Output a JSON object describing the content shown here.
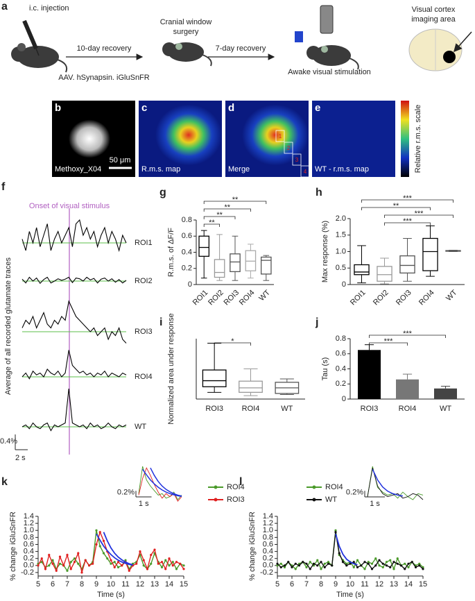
{
  "figure": {
    "a": {
      "label": "a",
      "injection": "i.c. injection",
      "recovery1": "10-day recovery",
      "surgery": [
        "Cranial window",
        "surgery"
      ],
      "recovery2": "7-day recovery",
      "stimulation": "Awake visual stimulation",
      "imaging": [
        "Visual cortex",
        "imaging area"
      ],
      "virus": "AAV. hSynapsin. iGluSnFR"
    },
    "images": [
      {
        "label": "b",
        "caption": "Methoxy_X04"
      },
      {
        "label": "c",
        "caption": "R.m.s. map"
      },
      {
        "label": "d",
        "caption": "Merge"
      },
      {
        "label": "e",
        "caption": "WT - r.m.s. map"
      }
    ],
    "scale_bar": "50 μm",
    "colorbar": "Relative r.m.s. scale",
    "rois": [
      "1",
      "2",
      "3",
      "4"
    ]
  },
  "chart_data": [
    {
      "type": "trace",
      "panel": "f",
      "annotation": "Onset of visual stimulus",
      "ylabel": "Average of all recorded glutamate traces",
      "scale_bar": {
        "value": 0.4,
        "label": "0.4%"
      },
      "time_bar": "2 s",
      "baseline_color": "#5bbf4a",
      "onset_color": "#b05ec0",
      "series": [
        {
          "name": "ROI1",
          "color": "#000000",
          "values": [
            0.1,
            -0.2,
            0.3,
            0.0,
            0.4,
            -0.1,
            0.2,
            0.5,
            -0.2,
            0.1,
            0.3,
            0.0,
            0.2,
            0.4,
            -0.1,
            0.5,
            0.6,
            0.2,
            0.4,
            0.1,
            0.3,
            -0.1,
            0.2,
            0.4,
            0.0,
            0.3,
            0.1,
            -0.2,
            0.2,
            0.0
          ]
        },
        {
          "name": "ROI2",
          "color": "#000000",
          "values": [
            0.05,
            -0.05,
            0.1,
            0.0,
            0.08,
            -0.06,
            0.04,
            0.1,
            -0.05,
            0.0,
            0.06,
            0.02,
            0.05,
            0.1,
            -0.04,
            0.08,
            0.06,
            0.0,
            0.1,
            0.03,
            0.07,
            -0.05,
            0.05,
            0.08,
            0.0,
            0.06,
            -0.03,
            0.04,
            -0.05,
            0.02
          ]
        },
        {
          "name": "ROI3",
          "color": "#000000",
          "values": [
            0.1,
            0.3,
            0.2,
            0.4,
            0.1,
            0.3,
            0.5,
            0.2,
            0.1,
            0.3,
            0.2,
            0.4,
            0.3,
            0.8,
            0.6,
            0.4,
            0.3,
            0.2,
            0.1,
            0.0,
            0.1,
            -0.1,
            0.0,
            0.1,
            -0.2,
            0.0,
            -0.1,
            0.1,
            -0.2,
            -0.3
          ]
        },
        {
          "name": "ROI4",
          "color": "#000000",
          "values": [
            0.0,
            0.1,
            -0.05,
            0.15,
            0.05,
            0.1,
            0.0,
            0.2,
            0.1,
            0.05,
            0.15,
            0.0,
            0.1,
            0.7,
            0.3,
            0.2,
            0.1,
            0.15,
            0.05,
            0.1,
            0.0,
            0.1,
            0.05,
            0.15,
            0.0,
            0.1,
            0.05,
            0.0,
            0.1,
            0.05
          ]
        },
        {
          "name": "WT",
          "color": "#000000",
          "values": [
            0.0,
            0.05,
            -0.05,
            0.1,
            0.0,
            -0.05,
            0.05,
            0.1,
            -0.1,
            0.05,
            0.0,
            0.05,
            0.1,
            1.0,
            0.1,
            0.05,
            0.0,
            0.05,
            -0.05,
            0.1,
            0.0,
            0.05,
            -0.05,
            0.0,
            0.1,
            0.0,
            -0.05,
            0.05,
            0.0,
            0.05
          ]
        }
      ]
    },
    {
      "type": "box",
      "panel": "g",
      "ylabel": "R.m.s. of ΔF/F",
      "categories": [
        "ROI1",
        "ROI2",
        "ROI3",
        "ROI4",
        "WT"
      ],
      "rotate_labels": true,
      "colors": [
        "#000000",
        "#999999",
        "#555555",
        "#aaaaaa",
        "#555555"
      ],
      "ylim": [
        0,
        0.8
      ],
      "yticks": [
        0,
        0.2,
        0.4,
        0.6,
        0.8
      ],
      "boxes": [
        {
          "min": 0.08,
          "q1": 0.35,
          "median": 0.46,
          "q3": 0.6,
          "max": 0.67
        },
        {
          "min": 0.05,
          "q1": 0.09,
          "median": 0.15,
          "q3": 0.31,
          "max": 0.62
        },
        {
          "min": 0.05,
          "q1": 0.16,
          "median": 0.28,
          "q3": 0.38,
          "max": 0.6
        },
        {
          "min": 0.08,
          "q1": 0.17,
          "median": 0.29,
          "q3": 0.42,
          "max": 0.5
        },
        {
          "min": 0.05,
          "q1": 0.13,
          "median": 0.3,
          "q3": 0.34,
          "max": 0.36
        }
      ],
      "significance": [
        {
          "from": "ROI1",
          "to": "ROI2",
          "label": "**"
        },
        {
          "from": "ROI1",
          "to": "ROI3",
          "label": "**"
        },
        {
          "from": "ROI1",
          "to": "ROI4",
          "label": "**"
        },
        {
          "from": "ROI1",
          "to": "WT",
          "label": "**"
        }
      ]
    },
    {
      "type": "box",
      "panel": "h",
      "ylabel": "Max response (%)",
      "categories": [
        "ROI1",
        "ROI2",
        "ROI3",
        "ROI4",
        "WT"
      ],
      "rotate_labels": true,
      "colors": [
        "#000000",
        "#999999",
        "#555555",
        "#000000",
        "#555555"
      ],
      "ylim": [
        0,
        2.0
      ],
      "yticks": [
        0,
        0.5,
        {
          "value": 1.0,
          "label": "1.0"
        },
        1.5,
        {
          "value": 2.0,
          "label": "2.0"
        }
      ],
      "boxes": [
        {
          "min": 0.05,
          "q1": 0.3,
          "median": 0.38,
          "q3": 0.6,
          "max": 1.18
        },
        {
          "min": 0.02,
          "q1": 0.1,
          "median": 0.3,
          "q3": 0.55,
          "max": 0.8
        },
        {
          "min": 0.1,
          "q1": 0.35,
          "median": 0.58,
          "q3": 0.87,
          "max": 1.4
        },
        {
          "min": 0.25,
          "q1": 0.42,
          "median": 1.0,
          "q3": 1.4,
          "max": 1.78
        },
        {
          "min": 1.0,
          "q1": 1.01,
          "median": 1.02,
          "q3": 1.03,
          "max": 1.04
        }
      ],
      "significance": [
        {
          "from": "ROI2",
          "to": "ROI4",
          "label": "***"
        },
        {
          "from": "ROI2",
          "to": "WT",
          "label": "***"
        },
        {
          "from": "ROI1",
          "to": "ROI4",
          "label": "**"
        },
        {
          "from": "ROI1",
          "to": "WT",
          "label": "***"
        }
      ]
    },
    {
      "type": "box",
      "panel": "i",
      "ylabel": "Normalized area under response",
      "categories": [
        "ROI3",
        "ROI4",
        "WT"
      ],
      "rotate_labels": false,
      "colors": [
        "#000000",
        "#999999",
        "#555555"
      ],
      "ylim": [
        -0.2,
        2.5
      ],
      "boxes": [
        {
          "min": 0.1,
          "q1": 0.35,
          "median": 0.62,
          "q3": 1.1,
          "max": 2.3
        },
        {
          "min": -0.05,
          "q1": 0.1,
          "median": 0.3,
          "q3": 0.6,
          "max": 1.15
        },
        {
          "min": 0.0,
          "q1": 0.05,
          "median": 0.3,
          "q3": 0.55,
          "max": 0.7
        }
      ],
      "significance": [
        {
          "from": "ROI3",
          "to": "ROI4",
          "label": "*"
        }
      ]
    },
    {
      "type": "bar",
      "panel": "j",
      "ylabel": "Tau (s)",
      "categories": [
        "ROI3",
        "ROI4",
        "WT"
      ],
      "colors": [
        "#000000",
        "#777777",
        "#444444"
      ],
      "values": [
        0.65,
        0.26,
        0.14
      ],
      "errors": [
        0.07,
        0.07,
        0.03
      ],
      "ylim": [
        0,
        0.8
      ],
      "yticks": [
        0,
        0.2,
        0.4,
        0.6,
        0.8
      ],
      "significance": [
        {
          "from": "ROI3",
          "to": "ROI4",
          "label": "***"
        },
        {
          "from": "ROI3",
          "to": "WT",
          "label": "***"
        }
      ]
    },
    {
      "type": "line",
      "panel": "k",
      "ylabel": "% change iGluSnFR",
      "xlabel": "Time (s)",
      "xlim": [
        5,
        15
      ],
      "xticks": [
        5,
        6,
        7,
        8,
        9,
        10,
        11,
        12,
        13,
        14,
        15
      ],
      "ylim": [
        -0.3,
        1.4
      ],
      "yticks": [
        -0.2,
        {
          "value": 0.0,
          "label": "0.0"
        },
        0.2,
        0.4,
        0.6,
        0.8,
        {
          "value": 1.0,
          "label": "1.0"
        },
        1.2,
        1.4
      ],
      "x": [
        5,
        5.25,
        5.5,
        5.75,
        6,
        6.25,
        6.5,
        6.75,
        7,
        7.25,
        7.5,
        7.75,
        8,
        8.25,
        8.5,
        8.75,
        9,
        9.25,
        9.5,
        9.75,
        10,
        10.25,
        10.5,
        10.75,
        11,
        11.25,
        11.5,
        11.75,
        12,
        12.25,
        12.5,
        12.75,
        13,
        13.25,
        13.5,
        13.75,
        14,
        14.25,
        14.5,
        14.75,
        15
      ],
      "series": [
        {
          "name": "ROI4",
          "color": "#4a9a2a",
          "values": [
            0.05,
            0.1,
            -0.05,
            0.0,
            0.15,
            -0.1,
            0.05,
            0.0,
            -0.15,
            0.1,
            0.2,
            0.05,
            -0.1,
            0.15,
            0.0,
            0.1,
            1.0,
            0.55,
            0.35,
            0.2,
            0.05,
            0.1,
            -0.05,
            0.0,
            0.15,
            -0.1,
            0.05,
            0.1,
            0.3,
            0.0,
            -0.1,
            0.05,
            0.35,
            0.1,
            -0.05,
            0.15,
            0.0,
            0.1,
            -0.1,
            0.05,
            0.0
          ]
        },
        {
          "name": "ROI3",
          "color": "#e02020",
          "values": [
            0.0,
            0.2,
            -0.1,
            0.3,
            0.05,
            -0.15,
            0.25,
            0.0,
            0.3,
            -0.1,
            0.1,
            0.35,
            -0.2,
            0.15,
            0.0,
            0.05,
            0.6,
            0.95,
            0.7,
            0.4,
            0.15,
            -0.05,
            0.1,
            0.0,
            0.1,
            -0.15,
            0.0,
            0.05,
            0.4,
            0.15,
            -0.1,
            0.3,
            0.45,
            0.05,
            0.1,
            -0.1,
            0.2,
            0.0,
            0.1,
            0.05,
            -0.1
          ]
        }
      ],
      "fits": [
        {
          "color": "#2233dd",
          "x": [
            9,
            9.25,
            9.5,
            9.75,
            10,
            10.25,
            10.5,
            10.75,
            11,
            11.25,
            11.5
          ],
          "values": [
            0.9,
            0.72,
            0.55,
            0.42,
            0.31,
            0.22,
            0.15,
            0.1,
            0.06,
            0.03,
            0.01
          ]
        },
        {
          "color": "#2233dd",
          "x": [
            9.5,
            9.75,
            10,
            10.25,
            10.5,
            10.75,
            11,
            11.25,
            11.5
          ],
          "values": [
            0.95,
            0.7,
            0.5,
            0.35,
            0.24,
            0.16,
            0.1,
            0.05,
            0.02
          ]
        }
      ],
      "inset": {
        "xlim": [
          8.75,
          11.5
        ],
        "ylim": [
          -0.1,
          1.0
        ],
        "ybar": {
          "value": 0.2,
          "label": "0.2%"
        },
        "xbar": {
          "value": 1,
          "label": "1 s"
        }
      }
    },
    {
      "type": "line",
      "panel": "l",
      "ylabel": "% change iGluSnFR",
      "xlabel": "Time (s)",
      "xlim": [
        5,
        15
      ],
      "xticks": [
        5,
        6,
        7,
        8,
        9,
        10,
        11,
        12,
        13,
        14,
        15
      ],
      "ylim": [
        -0.3,
        1.4
      ],
      "yticks": [
        -0.2,
        {
          "value": 0.0,
          "label": "0.0"
        },
        0.2,
        0.4,
        0.6,
        0.8,
        {
          "value": 1.0,
          "label": "1.0"
        },
        1.2,
        1.4
      ],
      "x": [
        5,
        5.25,
        5.5,
        5.75,
        6,
        6.25,
        6.5,
        6.75,
        7,
        7.25,
        7.5,
        7.75,
        8,
        8.25,
        8.5,
        8.75,
        9,
        9.25,
        9.5,
        9.75,
        10,
        10.25,
        10.5,
        10.75,
        11,
        11.25,
        11.5,
        11.75,
        12,
        12.25,
        12.5,
        12.75,
        13,
        13.25,
        13.5,
        13.75,
        14,
        14.25,
        14.5,
        14.75,
        15
      ],
      "series": [
        {
          "name": "ROI4",
          "color": "#4a9a2a",
          "values": [
            0.0,
            0.05,
            -0.05,
            0.1,
            0.0,
            -0.1,
            0.05,
            0.1,
            -0.05,
            0.1,
            0.0,
            0.15,
            -0.1,
            0.05,
            0.1,
            0.0,
            1.0,
            0.3,
            0.15,
            0.05,
            0.1,
            -0.05,
            0.15,
            0.0,
            -0.1,
            0.1,
            0.05,
            0.2,
            0.0,
            -0.05,
            0.1,
            0.15,
            -0.1,
            0.2,
            0.0,
            0.05,
            -0.05,
            0.1,
            0.0,
            0.05,
            -0.05
          ]
        },
        {
          "name": "WT",
          "color": "#111111",
          "values": [
            0.05,
            -0.05,
            0.0,
            0.1,
            -0.05,
            0.05,
            0.0,
            0.1,
            0.05,
            -0.1,
            0.05,
            0.0,
            0.1,
            -0.05,
            0.05,
            0.0,
            0.95,
            0.35,
            0.1,
            0.0,
            0.05,
            0.1,
            -0.05,
            0.0,
            0.1,
            0.05,
            -0.1,
            0.0,
            0.15,
            0.05,
            0.0,
            -0.05,
            0.1,
            0.05,
            0.0,
            -0.1,
            0.05,
            0.1,
            -0.05,
            0.0,
            -0.1
          ]
        }
      ],
      "fits": [
        {
          "color": "#2233dd",
          "x": [
            9,
            9.25,
            9.5,
            9.75,
            10,
            10.25,
            10.5
          ],
          "values": [
            0.9,
            0.55,
            0.32,
            0.18,
            0.1,
            0.05,
            0.02
          ]
        }
      ],
      "inset": {
        "xlim": [
          8.75,
          11.5
        ],
        "ylim": [
          -0.1,
          1.0
        ],
        "ybar": {
          "value": 0.2,
          "label": "0.2%"
        },
        "xbar": {
          "value": 1,
          "label": "1 s"
        }
      }
    }
  ]
}
